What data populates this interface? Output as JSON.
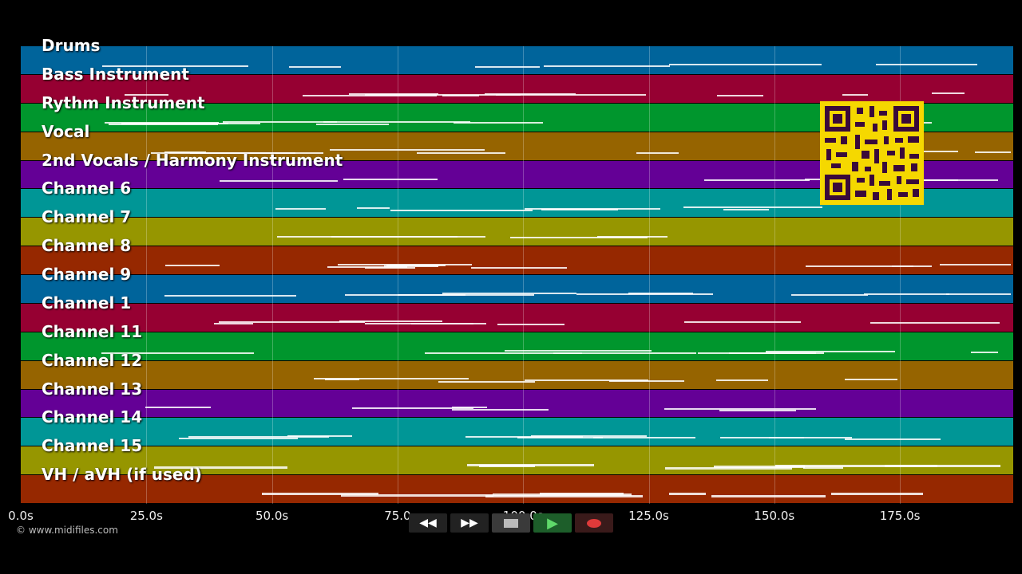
{
  "tracks": [
    {
      "label": "Drums",
      "color": "#00649b"
    },
    {
      "label": "Bass Instrument",
      "color": "#960032"
    },
    {
      "label": "Rythm Instrument",
      "color": "#00962d"
    },
    {
      "label": "Vocal",
      "color": "#966400"
    },
    {
      "label": "2nd Vocals / Harmony Instrument",
      "color": "#640096"
    },
    {
      "label": "Channel 6",
      "color": "#009696"
    },
    {
      "label": "Channel 7",
      "color": "#969600"
    },
    {
      "label": "Channel 8",
      "color": "#962800"
    },
    {
      "label": "Channel 9",
      "color": "#00649b"
    },
    {
      "label": "Channel 1",
      "color": "#960032"
    },
    {
      "label": "Channel 11",
      "color": "#00962d"
    },
    {
      "label": "Channel 12",
      "color": "#966400"
    },
    {
      "label": "Channel 13",
      "color": "#640096"
    },
    {
      "label": "Channel 14",
      "color": "#009696"
    },
    {
      "label": "Channel 15",
      "color": "#969600"
    },
    {
      "label": "VH / aVH (if used)",
      "color": "#962800"
    }
  ],
  "time_axis": {
    "ticks": [
      "0.0s",
      "25.0s",
      "50.0s",
      "75.0",
      "100.0s",
      "125.0s",
      "150.0s",
      "175.0s"
    ]
  },
  "footer": {
    "copyright": "© www.midifiles.com"
  },
  "transport": {
    "rewind_icon": "rewind-icon",
    "forward_icon": "fast-forward-icon",
    "stop_icon": "stop-icon",
    "play_icon": "play-icon",
    "record_icon": "record-icon"
  },
  "qr_icon": "qr-code-icon"
}
